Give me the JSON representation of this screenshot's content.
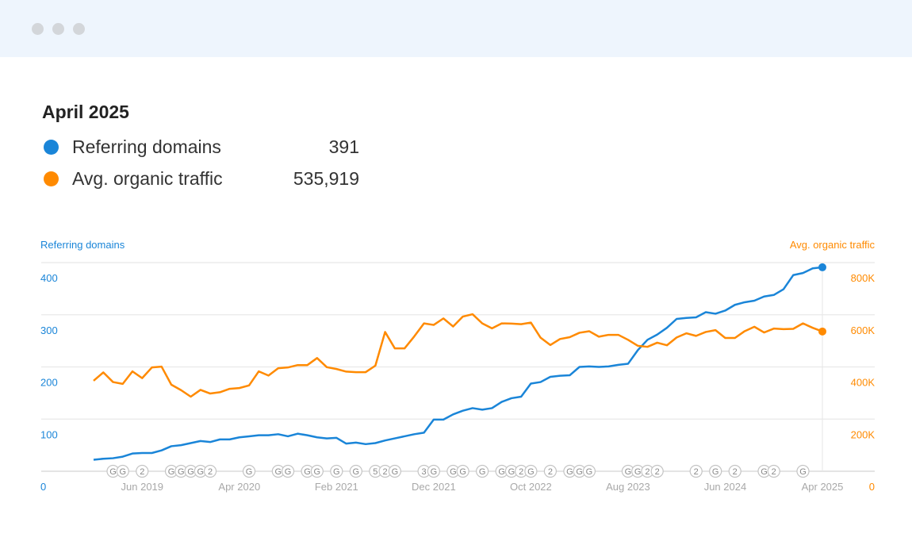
{
  "window": {
    "controls": [
      "close",
      "minimize",
      "maximize"
    ]
  },
  "summary": {
    "title": "April 2025",
    "items": [
      {
        "label": "Referring domains",
        "value": "391",
        "color": "#1a85d8"
      },
      {
        "label": "Avg. organic traffic",
        "value": "535,919",
        "color": "#ff8a00"
      }
    ]
  },
  "chart_data": {
    "type": "line",
    "left_axis": {
      "label": "Referring domains",
      "ticks": [
        "0",
        "100",
        "200",
        "300",
        "400"
      ],
      "range": [
        0,
        400
      ],
      "color": "#1a85d8"
    },
    "right_axis": {
      "label": "Avg. organic traffic",
      "ticks": [
        "0",
        "200K",
        "400K",
        "600K",
        "800K"
      ],
      "range": [
        0,
        800000
      ],
      "color": "#ff8a00"
    },
    "x_start": "2019-01",
    "x_end": "2025-04",
    "x_ticks": [
      {
        "date": "2019-06",
        "label": "Jun 2019"
      },
      {
        "date": "2020-04",
        "label": "Apr 2020"
      },
      {
        "date": "2021-02",
        "label": "Feb 2021"
      },
      {
        "date": "2021-12",
        "label": "Dec 2021"
      },
      {
        "date": "2022-10",
        "label": "Oct 2022"
      },
      {
        "date": "2023-08",
        "label": "Aug 2023"
      },
      {
        "date": "2024-06",
        "label": "Jun 2024"
      },
      {
        "date": "2025-04",
        "label": "Apr 2025"
      }
    ],
    "grid": true,
    "series": [
      {
        "name": "Referring domains",
        "axis": "left",
        "color": "#1a85d8",
        "values": [
          22,
          24,
          25,
          28,
          34,
          35,
          35,
          40,
          48,
          50,
          54,
          58,
          56,
          61,
          61,
          65,
          67,
          69,
          69,
          71,
          67,
          72,
          69,
          65,
          63,
          64,
          53,
          55,
          52,
          54,
          59,
          63,
          67,
          71,
          74,
          99,
          99,
          109,
          116,
          121,
          118,
          121,
          133,
          140,
          143,
          168,
          171,
          181,
          183,
          184,
          200,
          201,
          200,
          201,
          204,
          206,
          232,
          252,
          262,
          275,
          292,
          294,
          295,
          305,
          302,
          308,
          319,
          324,
          327,
          335,
          338,
          349,
          376,
          380,
          389,
          391
        ]
      },
      {
        "name": "Avg. organic traffic",
        "axis": "right",
        "color": "#ff8a00",
        "values": [
          347000,
          379000,
          342000,
          335000,
          383000,
          357000,
          398000,
          401000,
          332000,
          311000,
          286000,
          312000,
          298000,
          303000,
          316000,
          319000,
          329000,
          383000,
          367000,
          395000,
          398000,
          407000,
          407000,
          434000,
          399000,
          392000,
          382000,
          380000,
          380000,
          405000,
          534000,
          471000,
          471000,
          517000,
          567000,
          561000,
          586000,
          555000,
          593000,
          602000,
          567000,
          548000,
          567000,
          566000,
          564000,
          570000,
          512000,
          484000,
          507000,
          514000,
          531000,
          537000,
          516000,
          523000,
          523000,
          504000,
          481000,
          477000,
          493000,
          483000,
          513000,
          529000,
          519000,
          534000,
          541000,
          511000,
          511000,
          537000,
          554000,
          532000,
          547000,
          545000,
          546000,
          567000,
          550000,
          535919
        ]
      }
    ],
    "annotations": [
      {
        "date": "2019-03",
        "label": "G"
      },
      {
        "date": "2019-04",
        "label": "G"
      },
      {
        "date": "2019-06",
        "label": "2"
      },
      {
        "date": "2019-09",
        "label": "G"
      },
      {
        "date": "2019-10",
        "label": "G"
      },
      {
        "date": "2019-11",
        "label": "G"
      },
      {
        "date": "2019-12",
        "label": "G"
      },
      {
        "date": "2020-01",
        "label": "2"
      },
      {
        "date": "2020-05",
        "label": "G"
      },
      {
        "date": "2020-08",
        "label": "G"
      },
      {
        "date": "2020-09",
        "label": "G"
      },
      {
        "date": "2020-11",
        "label": "G"
      },
      {
        "date": "2020-12",
        "label": "G"
      },
      {
        "date": "2021-02",
        "label": "G"
      },
      {
        "date": "2021-04",
        "label": "G"
      },
      {
        "date": "2021-06",
        "label": "5"
      },
      {
        "date": "2021-07",
        "label": "2"
      },
      {
        "date": "2021-08",
        "label": "G"
      },
      {
        "date": "2021-11",
        "label": "3"
      },
      {
        "date": "2021-12",
        "label": "G"
      },
      {
        "date": "2022-02",
        "label": "G"
      },
      {
        "date": "2022-03",
        "label": "G"
      },
      {
        "date": "2022-05",
        "label": "G"
      },
      {
        "date": "2022-07",
        "label": "G"
      },
      {
        "date": "2022-08",
        "label": "G"
      },
      {
        "date": "2022-09",
        "label": "2"
      },
      {
        "date": "2022-10",
        "label": "G"
      },
      {
        "date": "2022-12",
        "label": "2"
      },
      {
        "date": "2023-02",
        "label": "G"
      },
      {
        "date": "2023-03",
        "label": "G"
      },
      {
        "date": "2023-04",
        "label": "G"
      },
      {
        "date": "2023-08",
        "label": "G"
      },
      {
        "date": "2023-09",
        "label": "G"
      },
      {
        "date": "2023-10",
        "label": "2"
      },
      {
        "date": "2023-11",
        "label": "2"
      },
      {
        "date": "2024-03",
        "label": "2"
      },
      {
        "date": "2024-05",
        "label": "G"
      },
      {
        "date": "2024-07",
        "label": "2"
      },
      {
        "date": "2024-10",
        "label": "G"
      },
      {
        "date": "2024-11",
        "label": "2"
      },
      {
        "date": "2025-02",
        "label": "G"
      }
    ]
  }
}
